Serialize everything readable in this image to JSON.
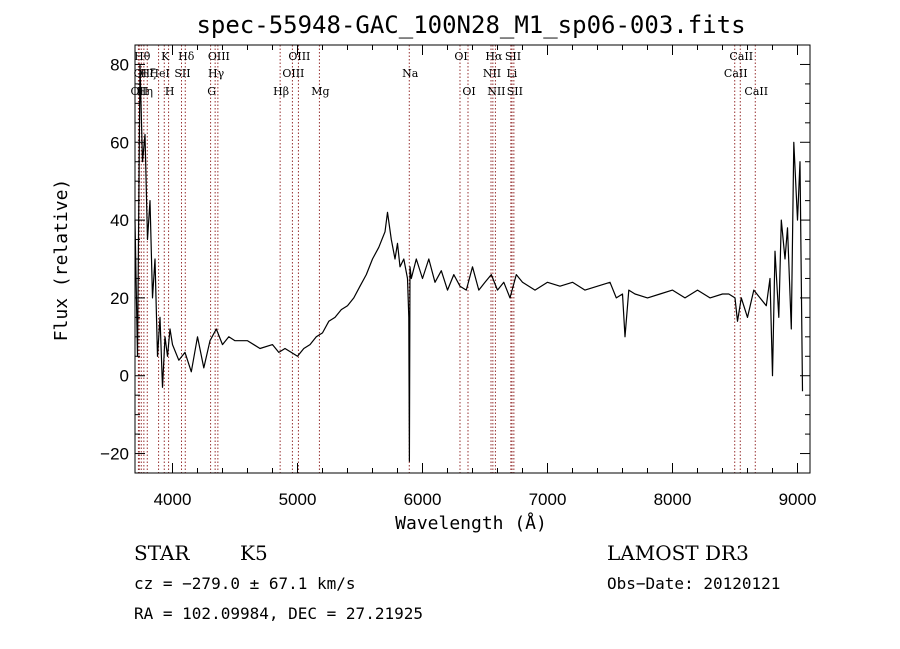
{
  "chart_data": {
    "type": "line",
    "title": "spec-55948-GAC_100N28_M1_sp06-003.fits",
    "xlabel": "Wavelength (Å)",
    "ylabel": "Flux (relative)",
    "xlim": [
      3700,
      9100
    ],
    "ylim": [
      -25,
      85
    ],
    "xticks": [
      4000,
      5000,
      6000,
      7000,
      8000,
      9000
    ],
    "yticks": [
      -20,
      0,
      20,
      40,
      60,
      80
    ],
    "series": [
      {
        "x": [
          3700,
          3720,
          3740,
          3760,
          3780,
          3800,
          3820,
          3840,
          3860,
          3880,
          3900,
          3920,
          3940,
          3960,
          3980,
          4000,
          4050,
          4100,
          4150,
          4200,
          4250,
          4300,
          4350,
          4400,
          4450,
          4500,
          4600,
          4700,
          4800,
          4850,
          4900,
          4950,
          5000,
          5050,
          5100,
          5150,
          5200,
          5250,
          5300,
          5350,
          5400,
          5450,
          5500,
          5550,
          5600,
          5650,
          5700,
          5720,
          5750,
          5780,
          5800,
          5820,
          5850,
          5880,
          5890,
          5895,
          5900,
          5910,
          5950,
          6000,
          6050,
          6100,
          6150,
          6200,
          6250,
          6300,
          6350,
          6400,
          6450,
          6500,
          6550,
          6600,
          6650,
          6700,
          6750,
          6800,
          6900,
          7000,
          7100,
          7200,
          7300,
          7400,
          7500,
          7550,
          7600,
          7620,
          7650,
          7700,
          7800,
          7900,
          8000,
          8100,
          8200,
          8300,
          8400,
          8450,
          8500,
          8520,
          8550,
          8600,
          8650,
          8700,
          8750,
          8780,
          8800,
          8820,
          8850,
          8870,
          8900,
          8920,
          8950,
          8970,
          9000,
          9020,
          9040
        ],
        "y": [
          40,
          5,
          80,
          55,
          62,
          35,
          45,
          20,
          30,
          5,
          15,
          -3,
          10,
          5,
          12,
          8,
          4,
          6,
          1,
          10,
          2,
          9,
          12,
          8,
          10,
          9,
          9,
          7,
          8,
          6,
          7,
          6,
          5,
          7,
          8,
          10,
          11,
          14,
          15,
          17,
          18,
          20,
          23,
          26,
          30,
          33,
          37,
          42,
          35,
          30,
          34,
          28,
          30,
          25,
          15,
          -22,
          28,
          25,
          30,
          25,
          30,
          24,
          27,
          22,
          26,
          23,
          22,
          28,
          22,
          24,
          26,
          22,
          24,
          20,
          26,
          24,
          22,
          24,
          23,
          24,
          22,
          23,
          24,
          20,
          21,
          10,
          22,
          21,
          20,
          21,
          22,
          20,
          22,
          20,
          21,
          21,
          20,
          14,
          20,
          15,
          22,
          20,
          18,
          25,
          0,
          32,
          15,
          40,
          30,
          38,
          12,
          60,
          40,
          55,
          -4
        ]
      }
    ],
    "emission_lines": [
      {
        "x": 3727,
        "label": "OII",
        "row": 2
      },
      {
        "x": 3734,
        "label": "OI",
        "row": 1
      },
      {
        "x": 3750,
        "label": "Hθ",
        "row": 0
      },
      {
        "x": 3771,
        "label": "Hη",
        "row": 2
      },
      {
        "x": 3798,
        "label": "Hζ",
        "row": 1
      },
      {
        "x": 3889,
        "label": "HeI",
        "row": 1
      },
      {
        "x": 3934,
        "label": "K",
        "row": 0
      },
      {
        "x": 3969,
        "label": "H",
        "row": 2
      },
      {
        "x": 4072,
        "label": "SII",
        "row": 1
      },
      {
        "x": 4102,
        "label": "Hδ",
        "row": 0
      },
      {
        "x": 4305,
        "label": "G",
        "row": 2
      },
      {
        "x": 4341,
        "label": "Hγ",
        "row": 1
      },
      {
        "x": 4363,
        "label": "OIII",
        "row": 0
      },
      {
        "x": 4861,
        "label": "Hβ",
        "row": 2
      },
      {
        "x": 4959,
        "label": "OIII",
        "row": 1
      },
      {
        "x": 5007,
        "label": "OIII",
        "row": 0
      },
      {
        "x": 5175,
        "label": "Mg",
        "row": 2
      },
      {
        "x": 5894,
        "label": "Na",
        "row": 1
      },
      {
        "x": 6300,
        "label": "OI",
        "row": 0
      },
      {
        "x": 6364,
        "label": "OI",
        "row": 2
      },
      {
        "x": 6548,
        "label": "NII",
        "row": 1
      },
      {
        "x": 6563,
        "label": "Hα",
        "row": 0
      },
      {
        "x": 6583,
        "label": "NII",
        "row": 2
      },
      {
        "x": 6707,
        "label": "Li",
        "row": 1
      },
      {
        "x": 6716,
        "label": "SII",
        "row": 0
      },
      {
        "x": 6731,
        "label": "SII",
        "row": 2
      },
      {
        "x": 8498,
        "label": "CaII",
        "row": 1
      },
      {
        "x": 8542,
        "label": "CaII",
        "row": 0
      },
      {
        "x": 8662,
        "label": "CaII",
        "row": 2
      }
    ]
  },
  "info": {
    "class": "STAR",
    "subclass": "K5",
    "survey": "LAMOST DR3",
    "cz": "cz = −279.0 ± 67.1 km/s",
    "obs_date": "Obs−Date: 20120121",
    "radec": "RA = 102.09984, DEC =  27.21925"
  },
  "colors": {
    "line_markers": "#8b1a1a",
    "spectrum": "#000000"
  }
}
